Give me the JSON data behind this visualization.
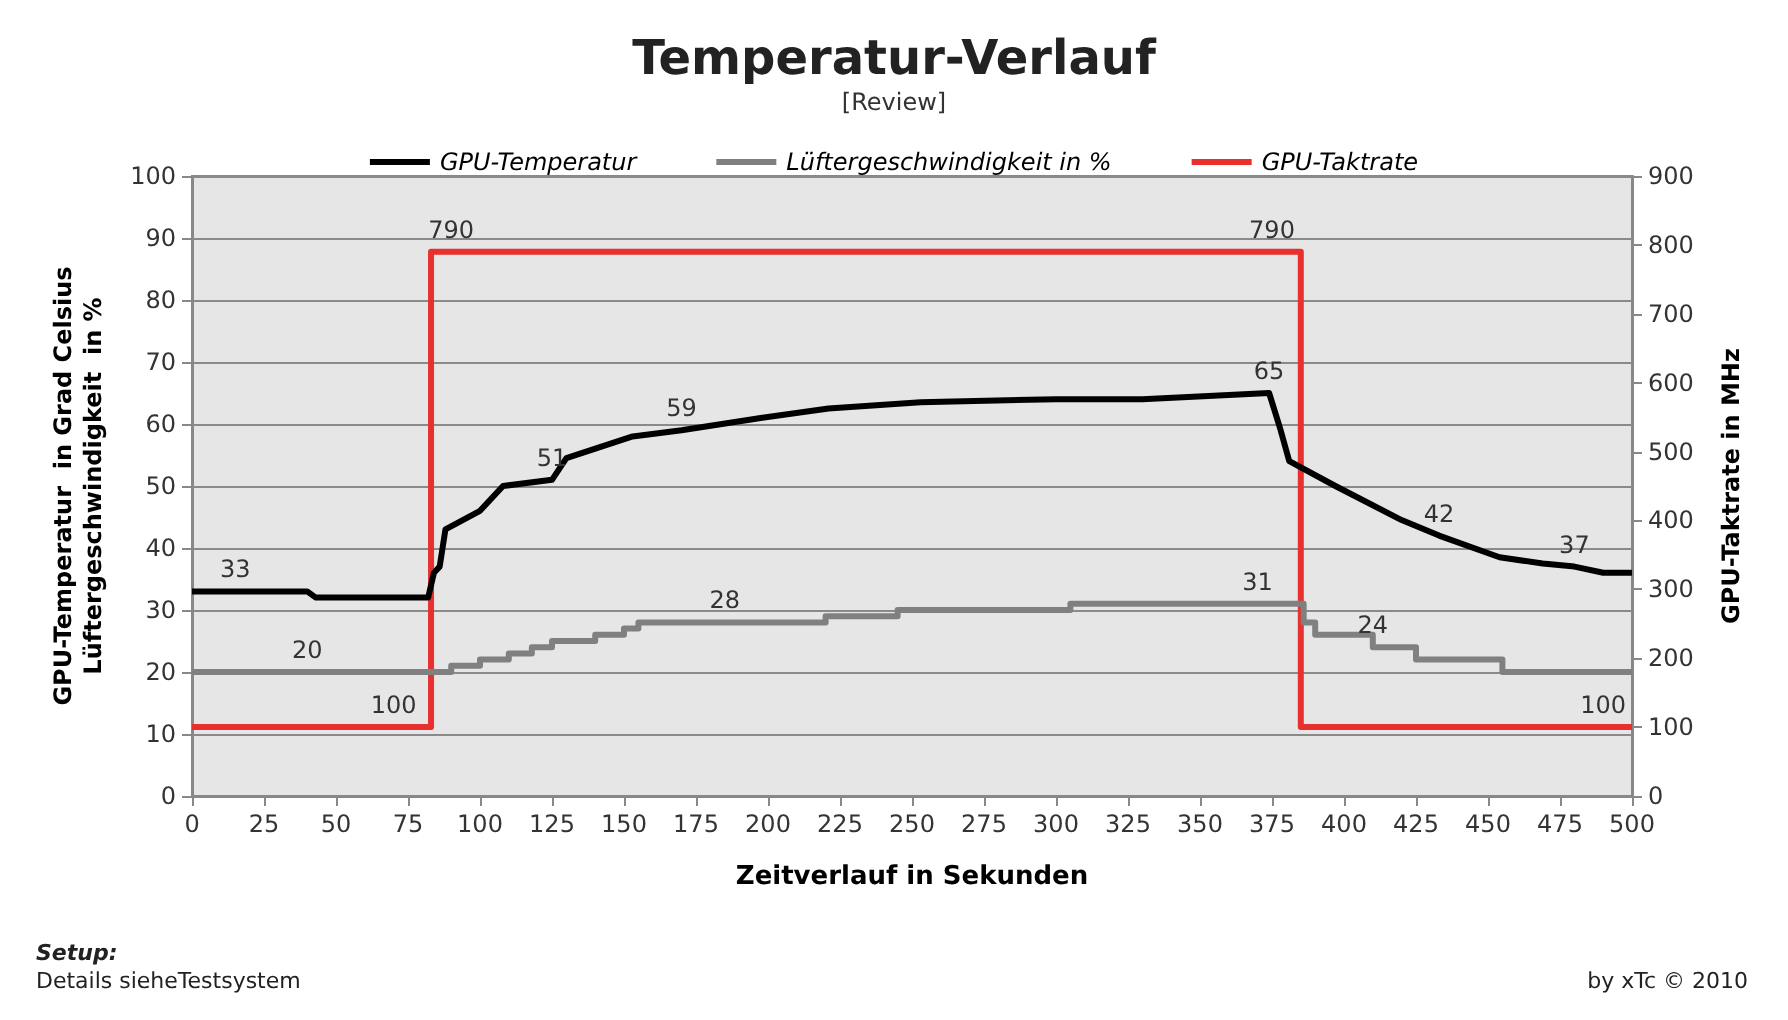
{
  "chart_data": {
    "type": "line",
    "title": "Temperatur-Verlauf",
    "subtitle": "[Review]",
    "xlabel": "Zeitverlauf in Sekunden",
    "ylabel": "GPU-Temperatur  in Grad Celsius\nLüftergeschwindigkeit  in %",
    "y2label": "GPU-Taktrate in MHz",
    "xlim": [
      0,
      500
    ],
    "xticks": [
      0,
      25,
      50,
      75,
      100,
      125,
      150,
      175,
      200,
      225,
      250,
      275,
      300,
      325,
      350,
      375,
      400,
      425,
      450,
      475,
      500
    ],
    "ylim": [
      0,
      100
    ],
    "yticks": [
      0,
      10,
      20,
      30,
      40,
      50,
      60,
      70,
      80,
      90,
      100
    ],
    "y2lim": [
      0,
      900
    ],
    "y2ticks": [
      0,
      100,
      200,
      300,
      400,
      500,
      600,
      700,
      800,
      900
    ],
    "grid": "y",
    "legend": "top",
    "marker": "none",
    "line_style": "solid",
    "series": [
      {
        "name": "GPU-Temperatur",
        "color": "#000000",
        "x": [
          0,
          15,
          40,
          43,
          60,
          82,
          84,
          86,
          88,
          100,
          108,
          125,
          130,
          153,
          170,
          198,
          221,
          253,
          300,
          330,
          374,
          378,
          381,
          397,
          420,
          433,
          454,
          469,
          480,
          490,
          500
        ],
        "values": [
          33,
          33,
          33,
          32,
          32,
          32,
          36,
          37,
          43,
          46,
          50,
          51,
          54.5,
          58,
          59,
          61,
          62.5,
          63.5,
          64,
          64,
          65,
          59,
          54,
          50,
          44.5,
          42,
          38.5,
          37.5,
          37,
          36,
          36
        ],
        "value_labels": [
          null,
          "33",
          null,
          null,
          null,
          null,
          null,
          null,
          null,
          null,
          null,
          "51",
          null,
          null,
          "59",
          null,
          null,
          null,
          null,
          null,
          "65",
          null,
          null,
          null,
          null,
          "42",
          null,
          null,
          "37",
          null,
          null
        ]
      },
      {
        "name": "Lüftergeschwindigkeit in %",
        "type": "step",
        "color": "#808080",
        "x": [
          0,
          40,
          85,
          90,
          100,
          110,
          118,
          125,
          140,
          150,
          155,
          185,
          220,
          245,
          305,
          370,
          386,
          390,
          410,
          425,
          455,
          500
        ],
        "values": [
          20,
          20,
          20,
          21,
          22,
          23,
          24,
          25,
          26,
          27,
          28,
          28,
          29,
          30,
          31,
          31,
          28,
          26,
          24,
          22,
          20,
          20
        ],
        "value_labels": [
          null,
          "20",
          null,
          null,
          null,
          null,
          null,
          null,
          null,
          null,
          null,
          "28",
          null,
          null,
          null,
          "31",
          null,
          null,
          "24",
          null,
          null,
          null
        ]
      },
      {
        "name": "GPU-Taktrate",
        "type": "step",
        "axis": "y2",
        "color": "#e8302e",
        "x": [
          0,
          70,
          83,
          90,
          375,
          385,
          490,
          500
        ],
        "values": [
          100,
          100,
          790,
          790,
          790,
          100,
          100,
          100
        ],
        "value_labels": [
          null,
          "100",
          null,
          "790",
          "790",
          null,
          "100",
          null
        ]
      }
    ],
    "annotations": [
      "Setup:",
      "Details sieheTestsystem",
      "by xTc © 2010"
    ]
  }
}
